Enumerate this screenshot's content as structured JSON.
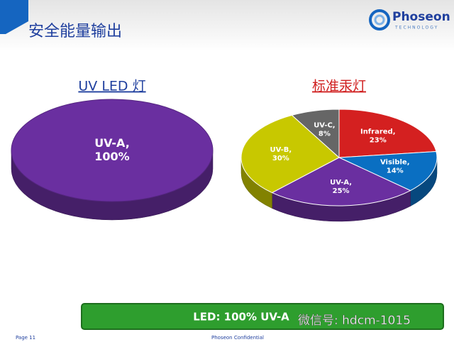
{
  "slide": {
    "title": "安全能量输出",
    "logo": "Phoseon",
    "logo_sub": "TECHNOLOGY",
    "banner": "LED: 100% UV-A",
    "watermark": "微信号: hdcm-1015",
    "page": "Page 11",
    "footer": "Phoseon Confidential"
  },
  "chart_data": [
    {
      "type": "pie",
      "title": "UV LED 灯",
      "title_color": "#1f3f9e",
      "categories": [
        "UV-A,"
      ],
      "values": [
        100
      ],
      "value_labels": [
        "100%"
      ],
      "colors": [
        "#6a2fa0"
      ]
    },
    {
      "type": "pie",
      "title": "标准汞灯",
      "title_color": "#d02020",
      "categories": [
        "Infrared,",
        "Visible,",
        "UV-A,",
        "UV-B,",
        "UV-C,"
      ],
      "values": [
        23,
        14,
        25,
        30,
        8
      ],
      "value_labels": [
        "23%",
        "14%",
        "25%",
        "30%",
        "8%"
      ],
      "colors": [
        "#d42020",
        "#0a6fc2",
        "#6a2fa0",
        "#c8c800",
        "#666666"
      ]
    }
  ]
}
